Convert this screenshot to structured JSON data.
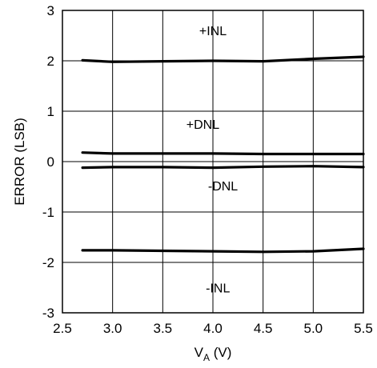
{
  "chart_data": {
    "type": "line",
    "title": "",
    "xlabel": "V",
    "xlabel_sub": "A",
    "xlabel_unit": " (V)",
    "ylabel": "ERROR (LSB)",
    "xlim": [
      2.5,
      5.5
    ],
    "ylim": [
      -3,
      3
    ],
    "xticks": [
      "2.5",
      "3.0",
      "3.5",
      "4.0",
      "4.5",
      "5.0",
      "5.5"
    ],
    "yticks": [
      "-3",
      "-2",
      "-1",
      "0",
      "1",
      "2",
      "3"
    ],
    "grid": true,
    "series": [
      {
        "name": "+INL",
        "x": [
          2.7,
          3.0,
          3.5,
          4.0,
          4.5,
          5.0,
          5.5
        ],
        "y": [
          2.01,
          1.98,
          1.99,
          2.0,
          1.99,
          2.04,
          2.08
        ]
      },
      {
        "name": "+DNL",
        "x": [
          2.7,
          3.0,
          3.5,
          4.0,
          4.5,
          5.0,
          5.5
        ],
        "y": [
          0.18,
          0.16,
          0.16,
          0.16,
          0.15,
          0.15,
          0.15
        ]
      },
      {
        "name": "-DNL",
        "x": [
          2.7,
          3.0,
          3.5,
          4.0,
          4.5,
          5.0,
          5.5
        ],
        "y": [
          -0.12,
          -0.11,
          -0.11,
          -0.12,
          -0.1,
          -0.09,
          -0.11
        ]
      },
      {
        "name": "-INL",
        "x": [
          2.7,
          3.0,
          3.5,
          4.0,
          4.5,
          5.0,
          5.5
        ],
        "y": [
          -1.76,
          -1.76,
          -1.77,
          -1.78,
          -1.79,
          -1.78,
          -1.73
        ]
      }
    ],
    "annotations": [
      {
        "text": "+INL",
        "x": 4.0,
        "y": 2.6
      },
      {
        "text": "+DNL",
        "x": 3.9,
        "y": 0.75
      },
      {
        "text": "-DNL",
        "x": 4.1,
        "y": -0.48
      },
      {
        "text": "-INL",
        "x": 4.05,
        "y": -2.5
      }
    ]
  }
}
